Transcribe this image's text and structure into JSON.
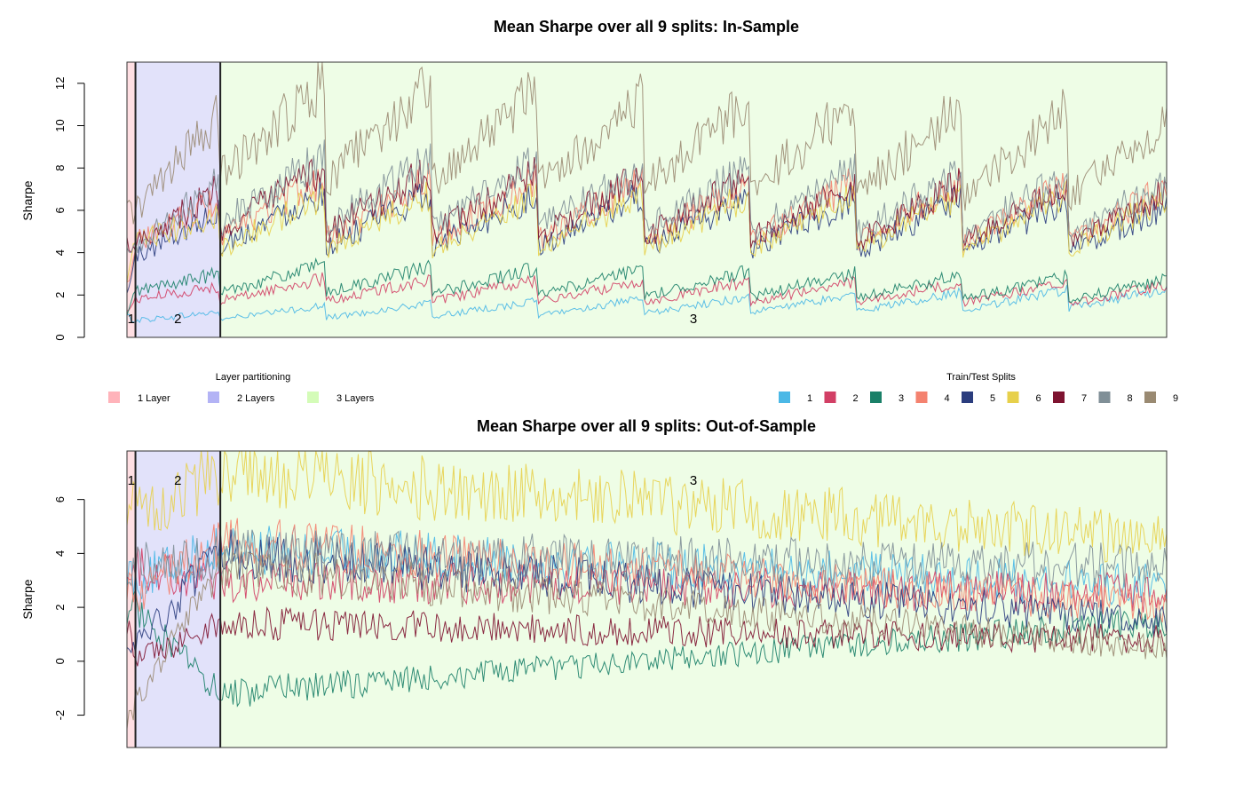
{
  "chart_data": [
    {
      "type": "line",
      "title": "Mean Sharpe over all 9 splits: In-Sample",
      "xlabel": "",
      "ylabel": "Sharpe",
      "ylim": [
        0,
        13
      ],
      "yticks": [
        0,
        2,
        4,
        6,
        8,
        10,
        12
      ],
      "grid": false,
      "regions": [
        {
          "label": "1",
          "name": "1 Layer",
          "color": "#ffdfe3",
          "x_start": 0,
          "x_end": 4
        },
        {
          "label": "2",
          "name": "2 Layers",
          "color": "#e2e2fa",
          "x_start": 4,
          "x_end": 44
        },
        {
          "label": "3",
          "name": "3 Layers",
          "color": "#eefde6",
          "x_start": 44,
          "x_end": 490
        }
      ],
      "n_points": 490,
      "series": [
        {
          "name": "1",
          "color": "#4bb8e6",
          "profile": [
            [
              0,
              1.0
            ],
            [
              4,
              0.8
            ],
            [
              44,
              1.2
            ],
            [
              490,
              2.0
            ]
          ]
        },
        {
          "name": "2",
          "color": "#d23f65",
          "profile": [
            [
              0,
              1.2
            ],
            [
              4,
              1.8
            ],
            [
              44,
              2.4
            ],
            [
              490,
              2.2
            ]
          ]
        },
        {
          "name": "3",
          "color": "#1a8068",
          "profile": [
            [
              0,
              1.0
            ],
            [
              4,
              2.2
            ],
            [
              44,
              3.0
            ],
            [
              490,
              2.4
            ]
          ]
        },
        {
          "name": "4",
          "color": "#f4826f",
          "profile": [
            [
              0,
              2.5
            ],
            [
              4,
              4.5
            ],
            [
              44,
              6.5
            ],
            [
              490,
              6.2
            ]
          ]
        },
        {
          "name": "5",
          "color": "#2b3d7e",
          "profile": [
            [
              0,
              2.0
            ],
            [
              4,
              3.8
            ],
            [
              44,
              6.0
            ],
            [
              490,
              5.5
            ]
          ]
        },
        {
          "name": "6",
          "color": "#e7d04b",
          "profile": [
            [
              0,
              2.5
            ],
            [
              4,
              4.5
            ],
            [
              44,
              5.8
            ],
            [
              490,
              5.8
            ]
          ]
        },
        {
          "name": "7",
          "color": "#7e1330",
          "profile": [
            [
              0,
              4.5
            ],
            [
              4,
              4.5
            ],
            [
              44,
              7.0
            ],
            [
              490,
              6.0
            ]
          ]
        },
        {
          "name": "8",
          "color": "#808f97",
          "profile": [
            [
              0,
              4.0
            ],
            [
              4,
              4.2
            ],
            [
              44,
              7.5
            ],
            [
              490,
              6.5
            ]
          ]
        },
        {
          "name": "9",
          "color": "#9a8a72",
          "profile": [
            [
              0,
              6.0
            ],
            [
              4,
              6.0
            ],
            [
              44,
              10.5
            ],
            [
              490,
              9.0
            ]
          ]
        }
      ]
    },
    {
      "type": "line",
      "title": "Mean Sharpe over all 9 splits: Out-of-Sample",
      "xlabel": "",
      "ylabel": "Sharpe",
      "ylim": [
        -3.2,
        7.8
      ],
      "yticks": [
        -2,
        0,
        2,
        4,
        6
      ],
      "grid": false,
      "regions": [
        {
          "label": "1",
          "name": "1 Layer",
          "color": "#ffdfe3",
          "x_start": 0,
          "x_end": 4
        },
        {
          "label": "2",
          "name": "2 Layers",
          "color": "#e2e2fa",
          "x_start": 4,
          "x_end": 44
        },
        {
          "label": "3",
          "name": "3 Layers",
          "color": "#eefde6",
          "x_start": 44,
          "x_end": 490
        }
      ],
      "n_points": 490,
      "series": [
        {
          "name": "1",
          "color": "#4bb8e6",
          "profile": [
            [
              0,
              3.5
            ],
            [
              4,
              3.0
            ],
            [
              44,
              4.2
            ],
            [
              490,
              2.8
            ]
          ]
        },
        {
          "name": "2",
          "color": "#d23f65",
          "profile": [
            [
              0,
              4.0
            ],
            [
              4,
              3.5
            ],
            [
              44,
              3.0
            ],
            [
              490,
              2.5
            ]
          ]
        },
        {
          "name": "3",
          "color": "#1a8068",
          "profile": [
            [
              0,
              2.0
            ],
            [
              4,
              2.0
            ],
            [
              44,
              -1.2
            ],
            [
              490,
              1.5
            ]
          ]
        },
        {
          "name": "4",
          "color": "#f4826f",
          "profile": [
            [
              0,
              3.0
            ],
            [
              4,
              2.5
            ],
            [
              44,
              4.5
            ],
            [
              490,
              2.0
            ]
          ]
        },
        {
          "name": "5",
          "color": "#2b3d7e",
          "profile": [
            [
              0,
              1.0
            ],
            [
              4,
              0.5
            ],
            [
              44,
              4.0
            ],
            [
              490,
              1.5
            ]
          ]
        },
        {
          "name": "6",
          "color": "#e7d04b",
          "profile": [
            [
              0,
              6.0
            ],
            [
              4,
              5.5
            ],
            [
              44,
              7.0
            ],
            [
              490,
              4.5
            ]
          ]
        },
        {
          "name": "7",
          "color": "#7e1330",
          "profile": [
            [
              0,
              1.5
            ],
            [
              4,
              0.0
            ],
            [
              44,
              1.4
            ],
            [
              490,
              0.8
            ]
          ]
        },
        {
          "name": "8",
          "color": "#808f97",
          "profile": [
            [
              0,
              3.5
            ],
            [
              4,
              3.5
            ],
            [
              44,
              4.0
            ],
            [
              490,
              3.5
            ]
          ]
        },
        {
          "name": "9",
          "color": "#9a8a72",
          "profile": [
            [
              0,
              -2.0
            ],
            [
              4,
              -1.5
            ],
            [
              44,
              3.5
            ],
            [
              490,
              0.5
            ]
          ]
        }
      ]
    }
  ],
  "legend_layers": {
    "title": "Layer partitioning",
    "items": [
      {
        "label": "1 Layer",
        "color": "#ffb3ba"
      },
      {
        "label": "2 Layers",
        "color": "#b3b3f5"
      },
      {
        "label": "3 Layers",
        "color": "#d4fcb8"
      }
    ]
  },
  "legend_splits": {
    "title": "Train/Test Splits",
    "items": [
      {
        "label": "1",
        "color": "#4bb8e6"
      },
      {
        "label": "2",
        "color": "#d23f65"
      },
      {
        "label": "3",
        "color": "#1a8068"
      },
      {
        "label": "4",
        "color": "#f4826f"
      },
      {
        "label": "5",
        "color": "#2b3d7e"
      },
      {
        "label": "6",
        "color": "#e7d04b"
      },
      {
        "label": "7",
        "color": "#7e1330"
      },
      {
        "label": "8",
        "color": "#808f97"
      },
      {
        "label": "9",
        "color": "#9a8a72"
      }
    ]
  }
}
